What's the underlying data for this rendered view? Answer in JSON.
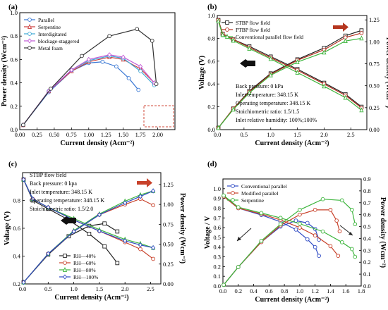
{
  "chart_data": [
    {
      "panel": "(a)",
      "type": "line",
      "xlabel": "Current density (Acm⁻²)",
      "ylabel": "Power density (Wcm⁻²)",
      "xlim": [
        0,
        2.25
      ],
      "ylim": [
        0,
        1.0
      ],
      "xticks": [
        "0.00",
        "0.25",
        "0.50",
        "0.75",
        "1.00",
        "1.25",
        "1.50",
        "1.75",
        "2.00"
      ],
      "xtick_values": [
        0,
        0.25,
        0.5,
        0.75,
        1.0,
        1.25,
        1.5,
        1.75,
        2.0
      ],
      "yticks": [
        "0.0",
        "0.2",
        "0.4",
        "0.6",
        "0.8",
        "1.0"
      ],
      "ytick_values": [
        0,
        0.2,
        0.4,
        0.6,
        0.8,
        1.0
      ],
      "legend_position": "top-left",
      "series": [
        {
          "name": "Parallel",
          "color": "#3a78d4",
          "marker": "circle",
          "x": [
            0.05,
            0.42,
            0.75,
            1.0,
            1.2,
            1.4,
            1.58,
            1.72
          ],
          "y": [
            0.04,
            0.32,
            0.5,
            0.57,
            0.58,
            0.54,
            0.44,
            0.34
          ]
        },
        {
          "name": "Serpentine",
          "color": "#cc3b3b",
          "marker": "triangle",
          "x": [
            0.05,
            0.42,
            0.75,
            1.0,
            1.3,
            1.5,
            1.75,
            1.95
          ],
          "y": [
            0.04,
            0.33,
            0.5,
            0.58,
            0.62,
            0.6,
            0.52,
            0.4
          ]
        },
        {
          "name": "Interdigitated",
          "color": "#3fa9d6",
          "marker": "circle",
          "x": [
            0.05,
            0.42,
            0.75,
            1.0,
            1.3,
            1.5,
            1.75,
            1.95
          ],
          "y": [
            0.04,
            0.33,
            0.51,
            0.59,
            0.63,
            0.61,
            0.5,
            0.38
          ]
        },
        {
          "name": "blockage-staggered",
          "color": "#c25bd6",
          "marker": "diamond",
          "x": [
            0.05,
            0.42,
            0.75,
            1.0,
            1.3,
            1.5,
            1.75,
            1.95
          ],
          "y": [
            0.04,
            0.33,
            0.51,
            0.6,
            0.64,
            0.62,
            0.54,
            0.4
          ]
        },
        {
          "name": "Metal foam",
          "color": "#333333",
          "marker": "circle",
          "x": [
            0.05,
            0.45,
            0.9,
            1.3,
            1.7,
            1.92,
            1.98
          ],
          "y": [
            0.04,
            0.35,
            0.63,
            0.8,
            0.86,
            0.76,
            0.39
          ]
        }
      ]
    },
    {
      "panel": "(b)",
      "type": "line",
      "xlabel": "Current density (Acm⁻²)",
      "ylabel": "Voltage (V)",
      "ylabel_right": "Power density (Wcm⁻²)",
      "xlim": [
        0,
        2.8
      ],
      "ylim": [
        0,
        1.0
      ],
      "ylim_right": [
        0,
        1.3
      ],
      "xticks": [
        "0.0",
        "0.5",
        "1.0",
        "1.5",
        "2.0",
        "2.5"
      ],
      "xtick_values": [
        0,
        0.5,
        1.0,
        1.5,
        2.0,
        2.5
      ],
      "yticks": [
        "0.0",
        "0.2",
        "0.4",
        "0.6",
        "0.8",
        "1.0"
      ],
      "ytick_values": [
        0,
        0.2,
        0.4,
        0.6,
        0.8,
        1.0
      ],
      "yticks_right": [
        "0.00",
        "0.25",
        "0.50",
        "0.75",
        "1.00",
        "1.25"
      ],
      "ytick_values_right": [
        0,
        0.25,
        0.5,
        0.75,
        1.0,
        1.25
      ],
      "legend_position": "top-left",
      "annotations": [
        "Back pressure: 0 kPa",
        "Inlet temperature: 348.15 K",
        "Operating temperature: 348.15 K",
        "Stoichiometric ratio: 1.5/1.5",
        "Inlet relative humidity: 100%;100%"
      ],
      "series": [
        {
          "name": "STBP flow field",
          "color": "#222222",
          "marker": "square",
          "voltage": {
            "x": [
              0.02,
              0.1,
              0.3,
              0.6,
              1.0,
              1.5,
              2.0,
              2.4,
              2.7
            ],
            "y": [
              0.96,
              0.84,
              0.79,
              0.73,
              0.64,
              0.53,
              0.41,
              0.31,
              0.2
            ]
          },
          "power": {
            "x": [
              0.02,
              0.3,
              0.6,
              1.0,
              1.5,
              2.0,
              2.4,
              2.7
            ],
            "y": [
              0.02,
              0.24,
              0.44,
              0.64,
              0.8,
              0.93,
              1.07,
              1.13
            ]
          }
        },
        {
          "name": "PTBP flow field",
          "color": "#b5301f",
          "marker": "circle",
          "voltage": {
            "x": [
              0.02,
              0.1,
              0.3,
              0.6,
              1.0,
              1.5,
              2.0,
              2.4,
              2.7
            ],
            "y": [
              0.96,
              0.84,
              0.79,
              0.72,
              0.63,
              0.52,
              0.4,
              0.3,
              0.19
            ]
          },
          "power": {
            "x": [
              0.02,
              0.3,
              0.6,
              1.0,
              1.5,
              2.0,
              2.4,
              2.7
            ],
            "y": [
              0.02,
              0.24,
              0.43,
              0.63,
              0.79,
              0.91,
              1.05,
              1.1
            ]
          }
        },
        {
          "name": "Conventional parallel flow field",
          "color": "#3db53d",
          "marker": "triangle",
          "voltage": {
            "x": [
              0.02,
              0.1,
              0.3,
              0.6,
              1.0,
              1.5,
              2.0,
              2.4,
              2.7
            ],
            "y": [
              0.95,
              0.83,
              0.78,
              0.71,
              0.62,
              0.5,
              0.38,
              0.28,
              0.17
            ]
          },
          "power": {
            "x": [
              0.02,
              0.3,
              0.6,
              1.0,
              1.5,
              2.0,
              2.4,
              2.7
            ],
            "y": [
              0.02,
              0.23,
              0.42,
              0.62,
              0.77,
              0.88,
              1.01,
              1.04
            ]
          }
        }
      ]
    },
    {
      "panel": "(c)",
      "type": "line",
      "xlabel": "Current density (Acm⁻²)",
      "ylabel": "Voltage (V)",
      "ylabel_right": "Power density (Wcm⁻²)",
      "xlim": [
        0,
        2.7
      ],
      "ylim": [
        0.2,
        1.0
      ],
      "ylim_right": [
        0,
        1.4
      ],
      "xticks": [
        "0.0",
        "0.5",
        "1.0",
        "1.5",
        "2.0",
        "2.5"
      ],
      "xtick_values": [
        0,
        0.5,
        1.0,
        1.5,
        2.0,
        2.5
      ],
      "yticks": [
        "0.2",
        "0.4",
        "0.6",
        "0.8"
      ],
      "ytick_values": [
        0.2,
        0.4,
        0.6,
        0.8
      ],
      "yticks_right": [
        "0.00",
        "0.25",
        "0.50",
        "0.75",
        "1.00",
        "1.25"
      ],
      "ytick_values_right": [
        0,
        0.25,
        0.5,
        0.75,
        1.0,
        1.25
      ],
      "legend_position": "bottom-center",
      "annotations": [
        "STBP flow field",
        "Back pressure: 0 kpa",
        "Inlet temperature: 348.15 K",
        "Operating temperature: 348.15 K",
        "Stoichiometric ratio: 1.5/2.0"
      ],
      "series": [
        {
          "name": "RH—40%",
          "color": "#222222",
          "marker": "square",
          "voltage": {
            "x": [
              0.02,
              0.2,
              0.5,
              0.9,
              1.3,
              1.6,
              1.85
            ],
            "y": [
              0.95,
              0.8,
              0.74,
              0.66,
              0.56,
              0.47,
              0.35
            ]
          },
          "power": {
            "x": [
              0.02,
              0.5,
              0.9,
              1.3,
              1.6,
              1.85
            ],
            "y": [
              0.02,
              0.37,
              0.6,
              0.73,
              0.76,
              0.66
            ]
          }
        },
        {
          "name": "RH—60%",
          "color": "#c8412a",
          "marker": "circle",
          "voltage": {
            "x": [
              0.02,
              0.2,
              0.5,
              1.0,
              1.5,
              2.0,
              2.3,
              2.55
            ],
            "y": [
              0.95,
              0.81,
              0.75,
              0.66,
              0.58,
              0.5,
              0.45,
              0.38
            ]
          },
          "power": {
            "x": [
              0.02,
              0.5,
              1.0,
              1.5,
              2.0,
              2.3,
              2.55
            ],
            "y": [
              0.02,
              0.38,
              0.66,
              0.87,
              1.0,
              1.07,
              0.99
            ]
          }
        },
        {
          "name": "RH—80%",
          "color": "#3db53d",
          "marker": "triangle",
          "voltage": {
            "x": [
              0.02,
              0.2,
              0.5,
              1.0,
              1.5,
              2.0,
              2.3,
              2.55
            ],
            "y": [
              0.95,
              0.81,
              0.75,
              0.67,
              0.59,
              0.52,
              0.49,
              0.46
            ]
          },
          "power": {
            "x": [
              0.02,
              0.5,
              1.0,
              1.5,
              2.0,
              2.3,
              2.55
            ],
            "y": [
              0.02,
              0.38,
              0.67,
              0.88,
              1.04,
              1.12,
              1.17
            ]
          }
        },
        {
          "name": "RH—100%",
          "color": "#2e4ac4",
          "marker": "diamond",
          "voltage": {
            "x": [
              0.02,
              0.2,
              0.5,
              1.0,
              1.5,
              2.0,
              2.3,
              2.55
            ],
            "y": [
              0.95,
              0.81,
              0.75,
              0.66,
              0.58,
              0.51,
              0.48,
              0.46
            ]
          },
          "power": {
            "x": [
              0.02,
              0.5,
              1.0,
              1.5,
              2.0,
              2.3,
              2.55
            ],
            "y": [
              0.02,
              0.38,
              0.66,
              0.87,
              1.02,
              1.1,
              1.17
            ]
          }
        }
      ]
    },
    {
      "panel": "(d)",
      "type": "line",
      "xlabel": "Current density (Acm⁻²)",
      "ylabel": "Voltage / V",
      "ylabel_right": "Power density (Wcm⁻²)",
      "xlim": [
        0,
        1.8
      ],
      "ylim": [
        0,
        1.1
      ],
      "ylim_right": [
        0,
        0.9
      ],
      "xticks": [
        "0.0",
        "0.2",
        "0.4",
        "0.6",
        "0.8",
        "1.0",
        "1.2",
        "1.4",
        "1.6",
        "1.8"
      ],
      "xtick_values": [
        0,
        0.2,
        0.4,
        0.6,
        0.8,
        1.0,
        1.2,
        1.4,
        1.6,
        1.8
      ],
      "yticks": [
        "0.0",
        "0.1",
        "0.2",
        "0.3",
        "0.4",
        "0.5",
        "0.6",
        "0.7",
        "0.8",
        "0.9",
        "1.0"
      ],
      "ytick_values": [
        0,
        0.1,
        0.2,
        0.3,
        0.4,
        0.5,
        0.6,
        0.7,
        0.8,
        0.9,
        1.0
      ],
      "yticks_right": [
        "0.0",
        "0.1",
        "0.2",
        "0.3",
        "0.4",
        "0.5",
        "0.6",
        "0.7",
        "0.8",
        "0.9"
      ],
      "ytick_values_right": [
        0,
        0.1,
        0.2,
        0.3,
        0.4,
        0.5,
        0.6,
        0.7,
        0.8,
        0.9
      ],
      "legend_position": "top-left",
      "series": [
        {
          "name": "Conventional parallel",
          "color": "#2e4ac4",
          "marker": "circle",
          "voltage": {
            "x": [
              0.01,
              0.2,
              0.5,
              0.75,
              0.95,
              1.1,
              1.2,
              1.25
            ],
            "y": [
              0.92,
              0.8,
              0.73,
              0.66,
              0.58,
              0.48,
              0.4,
              0.31
            ]
          },
          "power": {
            "x": [
              0.01,
              0.2,
              0.5,
              0.75,
              0.95,
              1.1,
              1.2,
              1.25
            ],
            "y": [
              0.01,
              0.16,
              0.37,
              0.5,
              0.55,
              0.53,
              0.48,
              0.39
            ]
          }
        },
        {
          "name": "Modified parallel",
          "color": "#c8412a",
          "marker": "circle",
          "voltage": {
            "x": [
              0.01,
              0.2,
              0.5,
              0.75,
              1.0,
              1.2,
              1.4,
              1.5
            ],
            "y": [
              0.92,
              0.8,
              0.74,
              0.68,
              0.6,
              0.52,
              0.41,
              0.31
            ]
          },
          "power": {
            "x": [
              0.01,
              0.2,
              0.5,
              0.75,
              1.0,
              1.2,
              1.4,
              1.48,
              1.52
            ],
            "y": [
              0.01,
              0.16,
              0.37,
              0.51,
              0.6,
              0.64,
              0.64,
              0.55,
              0.46
            ]
          }
        },
        {
          "name": "Serpentine",
          "color": "#3db53d",
          "marker": "circle",
          "voltage": {
            "x": [
              0.01,
              0.2,
              0.5,
              0.75,
              1.0,
              1.3,
              1.55,
              1.68,
              1.72
            ],
            "y": [
              0.93,
              0.81,
              0.75,
              0.7,
              0.64,
              0.56,
              0.45,
              0.38,
              0.3
            ]
          },
          "power": {
            "x": [
              0.01,
              0.2,
              0.5,
              0.75,
              1.0,
              1.3,
              1.55,
              1.68,
              1.72
            ],
            "y": [
              0.01,
              0.16,
              0.38,
              0.52,
              0.64,
              0.73,
              0.72,
              0.64,
              0.52
            ]
          }
        }
      ]
    }
  ]
}
